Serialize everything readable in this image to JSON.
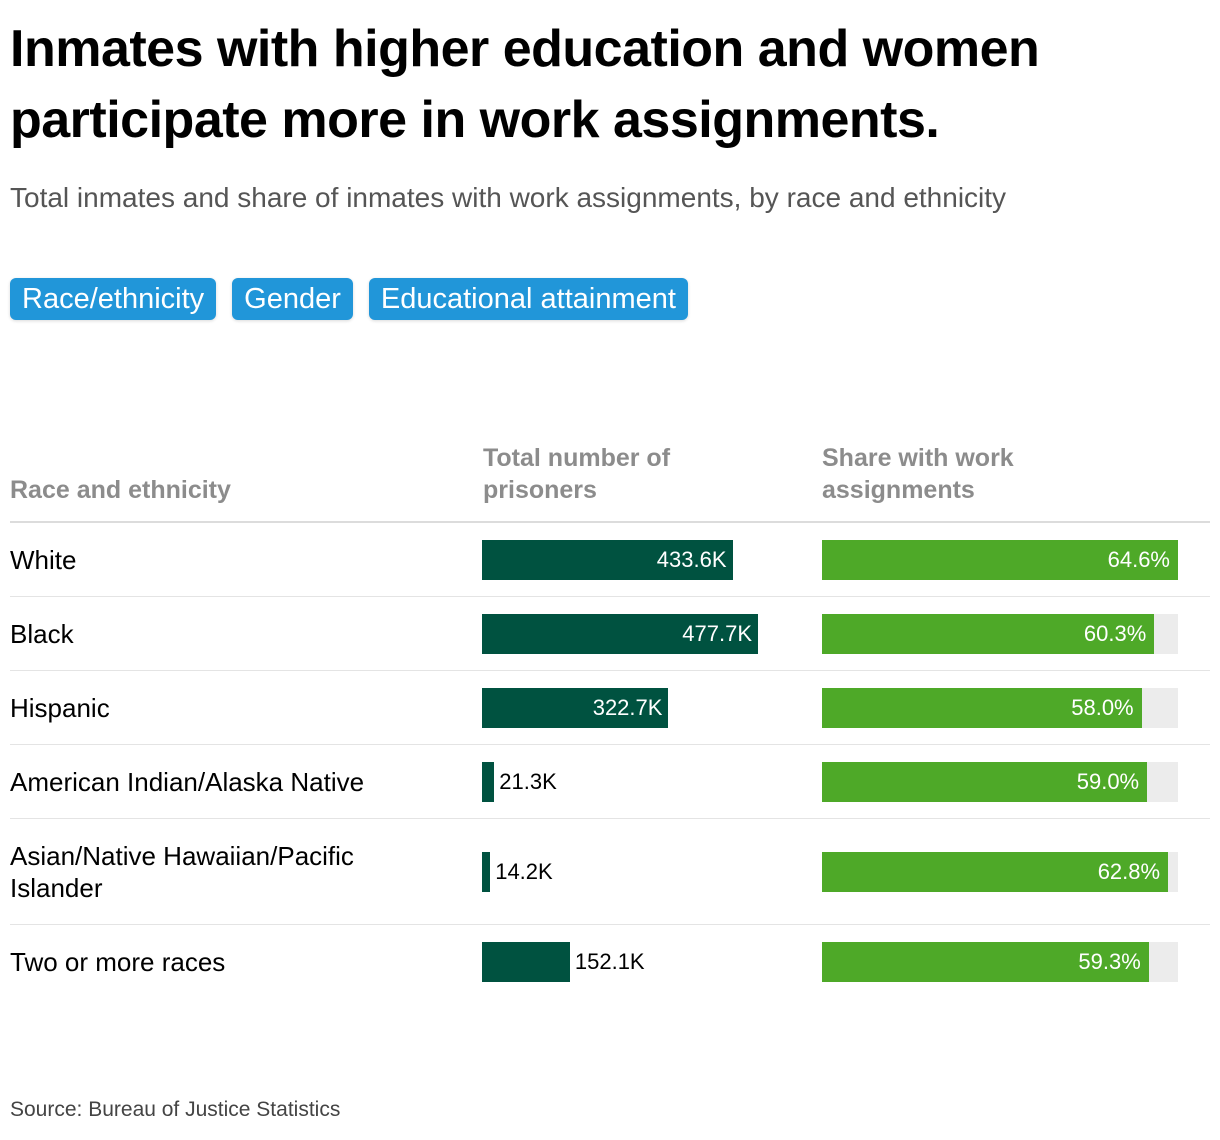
{
  "title": "Inmates with higher education and women participate more in work assignments.",
  "subtitle": "Total inmates and share of inmates with work assignments, by race and ethnicity",
  "tabs": [
    "Race/ethnicity",
    "Gender",
    "Educational attainment"
  ],
  "colors": {
    "total_bar": "#005240",
    "share_bar": "#4ea928",
    "share_track": "#ececec",
    "tab": "#2196d9"
  },
  "chart_data": {
    "type": "bar",
    "title": "Total inmates and share of inmates with work assignments, by race and ethnicity",
    "headers": {
      "category": "Race and ethnicity",
      "total": "Total number of prisoners",
      "share": "Share with work assignments"
    },
    "categories": [
      "White",
      "Black",
      "Hispanic",
      "American Indian/Alaska Native",
      "Asian/Native Hawaiian/Pacific Islander",
      "Two or more races"
    ],
    "series": [
      {
        "name": "Total number of prisoners",
        "values": [
          433.6,
          477.7,
          322.7,
          21.3,
          14.2,
          152.1
        ],
        "unit": "K",
        "labels": [
          "433.6K",
          "477.7K",
          "322.7K",
          "21.3K",
          "14.2K",
          "152.1K"
        ]
      },
      {
        "name": "Share with work assignments",
        "values": [
          64.6,
          60.3,
          58.0,
          59.0,
          62.8,
          59.3
        ],
        "unit": "%",
        "labels": [
          "64.6%",
          "60.3%",
          "58.0%",
          "59.0%",
          "62.8%",
          "59.3%"
        ]
      }
    ]
  },
  "source": "Source: Bureau of Justice Statistics"
}
